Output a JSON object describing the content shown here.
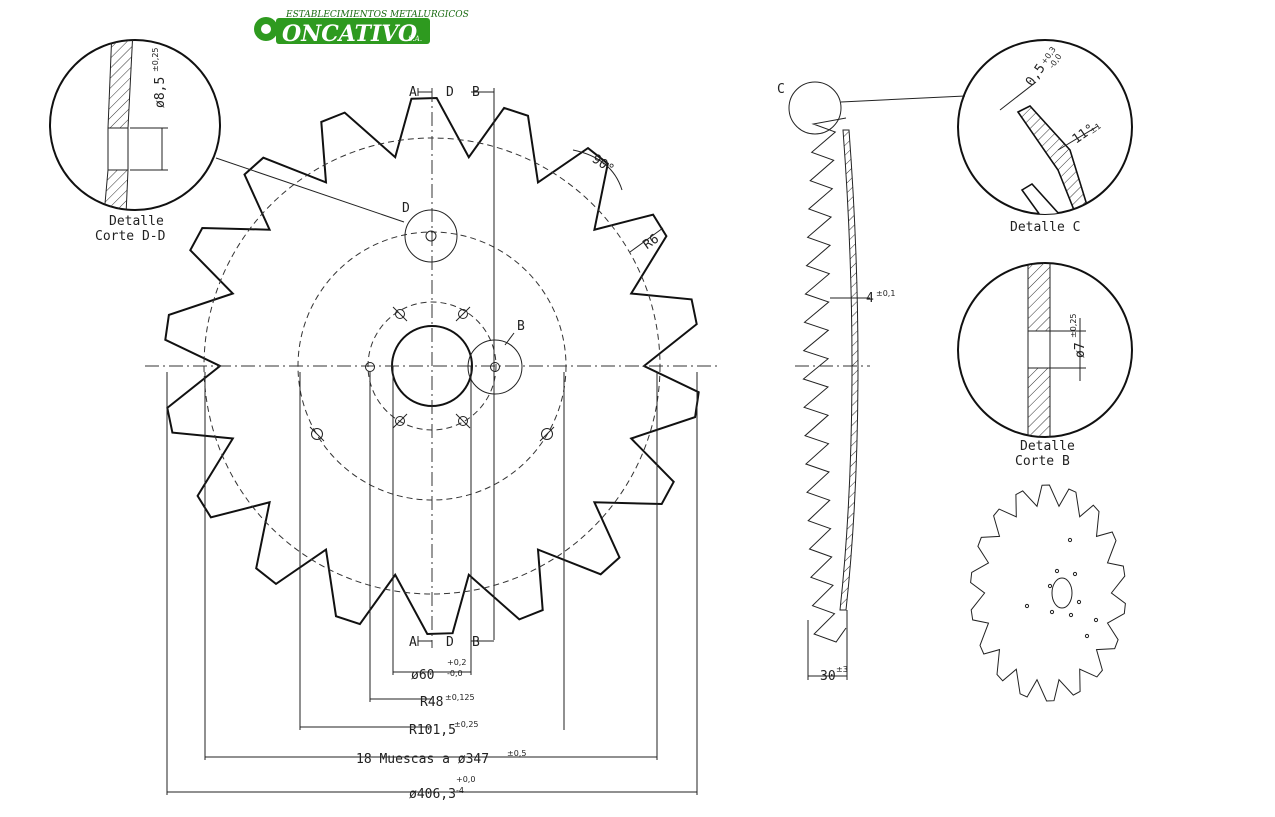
{
  "logo": {
    "top_text": "ESTABLECIMIENTOS METALURGICOS",
    "main_text": "ONCATIVO",
    "suffix": "S.A.",
    "colors": {
      "green": "#2e9a1f",
      "dark_green": "#1a6b12",
      "text": "#ffffff"
    }
  },
  "section_markers": {
    "a": "A",
    "d": "D",
    "b": "B"
  },
  "front_view": {
    "detail_d_label": "D",
    "detail_b_label": "B",
    "angle_label": "90°",
    "radius_label": "R6",
    "dims": {
      "bore": {
        "text": "ø60",
        "tol_upper": "+0,2",
        "tol_lower": "-0,0"
      },
      "r48": {
        "text": "R48",
        "tol": "±0,125"
      },
      "r101": {
        "text": "R101,5",
        "tol": "±0,25"
      },
      "notches": {
        "text": "18 Muescas a ø347",
        "tol": "±0,5"
      },
      "outer": {
        "text": "ø406,3",
        "tol_upper": "+0,0",
        "tol_lower": "-4"
      }
    }
  },
  "detail_dd": {
    "dim_text": "ø8,5",
    "tol": "±0,25",
    "caption_line1": "Detalle",
    "caption_line2": "Corte D-D"
  },
  "side_view": {
    "detail_c_label": "C",
    "thickness_text": "4",
    "thickness_tol": "±0,1",
    "depth_text": "30",
    "depth_tol": "±3"
  },
  "detail_c": {
    "dim_text": "0,5",
    "tol_upper": "+0,3",
    "tol_lower": "-0,0",
    "angle_text": "11°",
    "angle_tol": "±1",
    "caption": "Detalle C"
  },
  "detail_b": {
    "dim_text": "ø7",
    "tol": "±0,25",
    "caption_line1": "Detalle",
    "caption_line2": "Corte B"
  }
}
